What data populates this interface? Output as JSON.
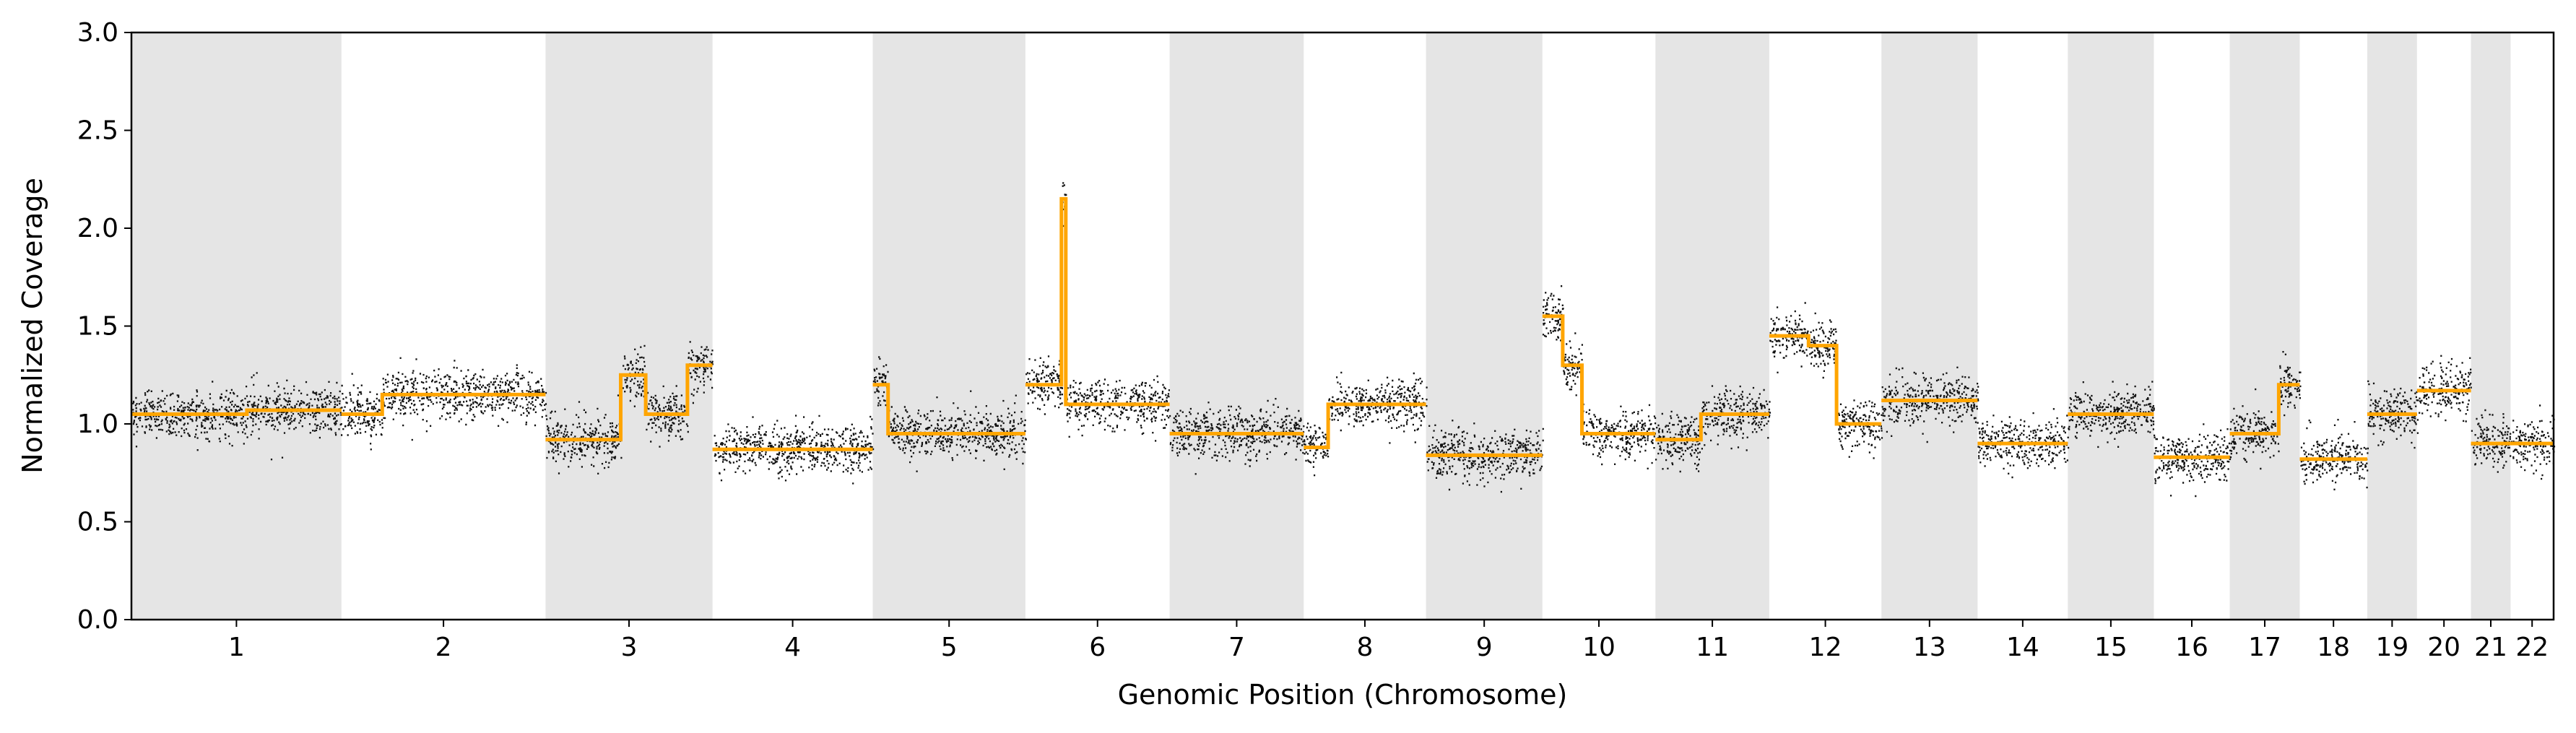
{
  "chart_data": {
    "type": "scatter",
    "xlabel": "Genomic Position (Chromosome)",
    "ylabel": "Normalized Coverage",
    "ylim": [
      0.0,
      3.0
    ],
    "yticks": [
      "0.0",
      "0.5",
      "1.0",
      "1.5",
      "2.0",
      "2.5",
      "3.0"
    ],
    "grid": false,
    "legend": "none",
    "colors": {
      "points": "#111111",
      "segments": "#FFA500",
      "band": "#e5e5e5"
    },
    "chromosomes": [
      {
        "label": "1",
        "size": 249,
        "segments": [
          [
            0.0,
            0.55,
            1.05
          ],
          [
            0.55,
            1.0,
            1.07
          ]
        ]
      },
      {
        "label": "2",
        "size": 242,
        "segments": [
          [
            0.0,
            0.2,
            1.05
          ],
          [
            0.2,
            1.0,
            1.15
          ]
        ]
      },
      {
        "label": "3",
        "size": 198,
        "segments": [
          [
            0.0,
            0.45,
            0.92
          ],
          [
            0.45,
            0.6,
            1.25
          ],
          [
            0.6,
            0.85,
            1.05
          ],
          [
            0.85,
            1.0,
            1.3
          ]
        ]
      },
      {
        "label": "4",
        "size": 190,
        "segments": [
          [
            0.0,
            1.0,
            0.87
          ]
        ]
      },
      {
        "label": "5",
        "size": 181,
        "segments": [
          [
            0.0,
            0.1,
            1.2
          ],
          [
            0.1,
            1.0,
            0.95
          ]
        ]
      },
      {
        "label": "6",
        "size": 171,
        "segments": [
          [
            0.0,
            0.25,
            1.2
          ],
          [
            0.25,
            0.28,
            2.15
          ],
          [
            0.28,
            1.0,
            1.1
          ]
        ]
      },
      {
        "label": "7",
        "size": 159,
        "segments": [
          [
            0.0,
            1.0,
            0.95
          ]
        ]
      },
      {
        "label": "8",
        "size": 145,
        "segments": [
          [
            0.0,
            0.2,
            0.88
          ],
          [
            0.2,
            1.0,
            1.1
          ]
        ]
      },
      {
        "label": "9",
        "size": 138,
        "segments": [
          [
            0.0,
            1.0,
            0.84
          ]
        ]
      },
      {
        "label": "10",
        "size": 134,
        "segments": [
          [
            0.0,
            0.18,
            1.55
          ],
          [
            0.18,
            0.35,
            1.3
          ],
          [
            0.35,
            1.0,
            0.95
          ]
        ]
      },
      {
        "label": "11",
        "size": 135,
        "segments": [
          [
            0.0,
            0.4,
            0.92
          ],
          [
            0.4,
            1.0,
            1.05
          ]
        ]
      },
      {
        "label": "12",
        "size": 133,
        "segments": [
          [
            0.0,
            0.35,
            1.45
          ],
          [
            0.35,
            0.5,
            1.4
          ],
          [
            0.5,
            0.6,
            1.4
          ],
          [
            0.6,
            1.0,
            1.0
          ]
        ]
      },
      {
        "label": "13",
        "size": 114,
        "segments": [
          [
            0.0,
            1.0,
            1.12
          ]
        ]
      },
      {
        "label": "14",
        "size": 107,
        "segments": [
          [
            0.0,
            1.0,
            0.9
          ]
        ]
      },
      {
        "label": "15",
        "size": 102,
        "segments": [
          [
            0.0,
            0.5,
            1.05
          ],
          [
            0.5,
            1.0,
            1.05
          ]
        ]
      },
      {
        "label": "16",
        "size": 90,
        "segments": [
          [
            0.0,
            1.0,
            0.83
          ]
        ]
      },
      {
        "label": "17",
        "size": 83,
        "segments": [
          [
            0.0,
            0.7,
            0.95
          ],
          [
            0.7,
            1.0,
            1.2
          ]
        ]
      },
      {
        "label": "18",
        "size": 80,
        "segments": [
          [
            0.0,
            1.0,
            0.82
          ]
        ]
      },
      {
        "label": "19",
        "size": 59,
        "segments": [
          [
            0.0,
            1.0,
            1.05
          ]
        ]
      },
      {
        "label": "20",
        "size": 64,
        "segments": [
          [
            0.0,
            1.0,
            1.17
          ]
        ]
      },
      {
        "label": "21",
        "size": 47,
        "segments": [
          [
            0.0,
            1.0,
            0.9
          ]
        ]
      },
      {
        "label": "22",
        "size": 51,
        "segments": [
          [
            0.0,
            1.0,
            0.9
          ]
        ]
      }
    ]
  }
}
